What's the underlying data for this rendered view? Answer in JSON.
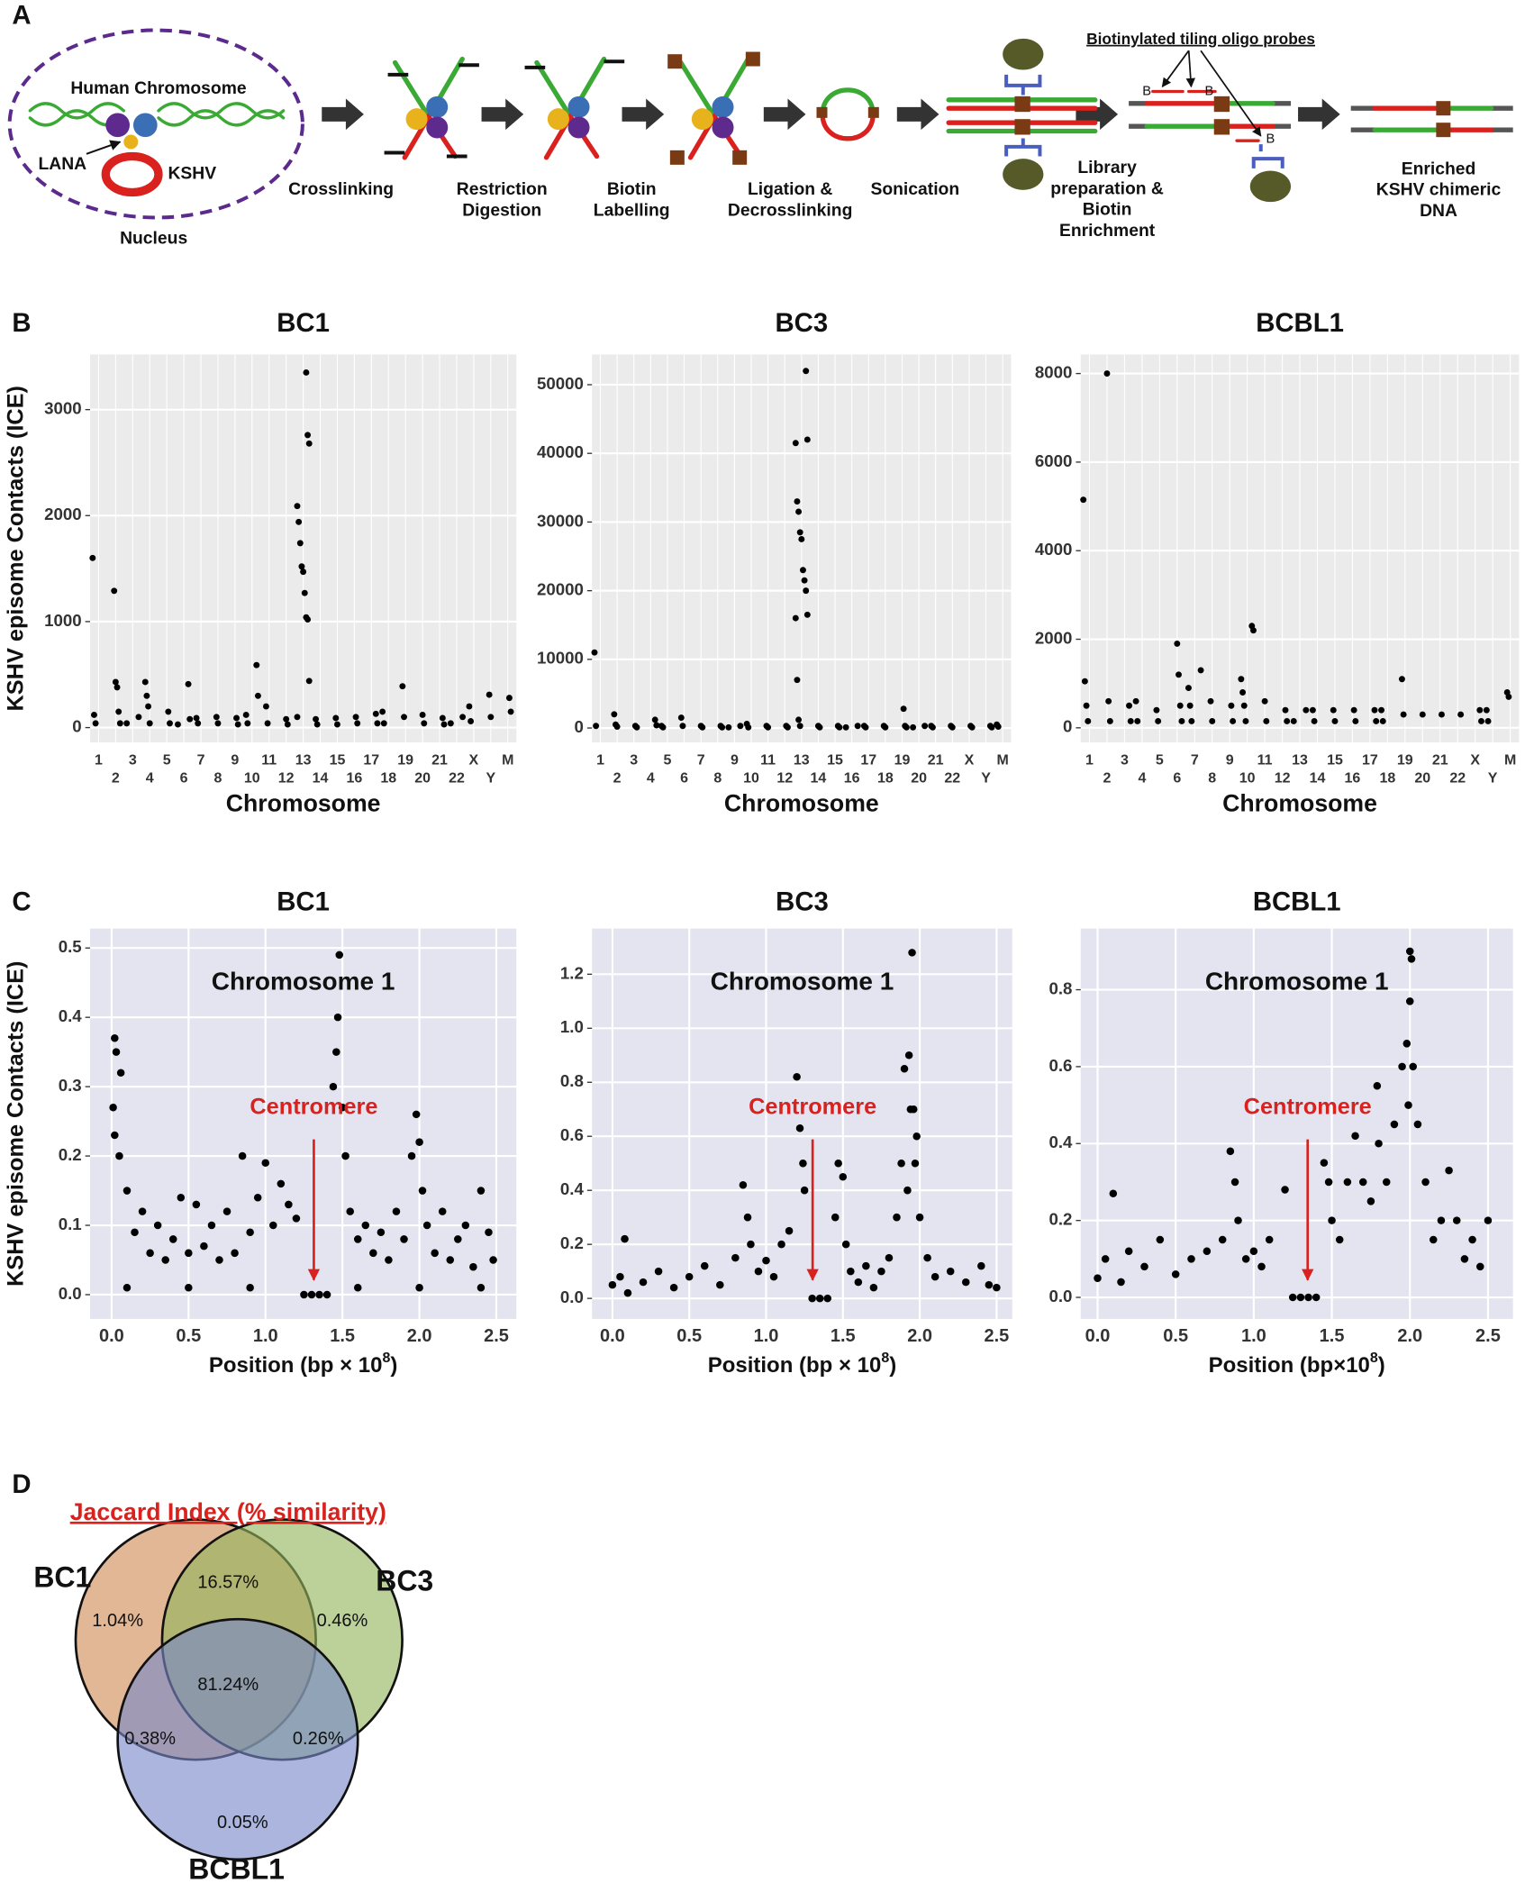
{
  "panel_labels": [
    "A",
    "B",
    "C",
    "D"
  ],
  "diagram": {
    "nucleus": {
      "chromosome": "Human Chromosome",
      "lana": "LANA",
      "kshv": "KSHV",
      "label": "Nucleus"
    },
    "steps": [
      [
        "Crosslinking"
      ],
      [
        "Restriction",
        "Digestion"
      ],
      [
        "Biotin",
        "Labelling"
      ],
      [
        "Ligation &",
        "Decrosslinking"
      ],
      [
        "Sonication"
      ],
      [
        "Library",
        "preparation &",
        "Biotin",
        "Enrichment"
      ],
      [
        "Enriched",
        "KSHV chimeric",
        "DNA"
      ]
    ],
    "probes": "Biotinylated tiling oligo probes",
    "biotin": "B"
  },
  "chart_data": [
    {
      "type": "manhattan",
      "title": "BC1",
      "xlabel": "Chromosome",
      "ylabel": "KSHV episome Contacts (ICE)",
      "categories": [
        "1",
        "2",
        "3",
        "4",
        "5",
        "6",
        "7",
        "8",
        "9",
        "10",
        "11",
        "12",
        "13",
        "14",
        "15",
        "16",
        "17",
        "18",
        "19",
        "20",
        "21",
        "22",
        "X",
        "Y",
        "M"
      ],
      "x": [
        "1",
        "1",
        "1",
        "2",
        "2",
        "2",
        "2",
        "2",
        "3",
        "3",
        "4",
        "4",
        "4",
        "4",
        "5",
        "5",
        "6",
        "6",
        "6",
        "7",
        "7",
        "8",
        "8",
        "9",
        "9",
        "10",
        "10",
        "10",
        "10",
        "11",
        "11",
        "12",
        "12",
        "13",
        "13",
        "13",
        "13",
        "13",
        "13",
        "13",
        "13",
        "13",
        "13",
        "13",
        "13",
        "13",
        "14",
        "14",
        "15",
        "15",
        "16",
        "16",
        "17",
        "17",
        "18",
        "18",
        "19",
        "19",
        "20",
        "20",
        "21",
        "21",
        "22",
        "22",
        "X",
        "X",
        "Y",
        "Y",
        "M",
        "M"
      ],
      "values": [
        1600,
        120,
        40,
        1290,
        430,
        380,
        150,
        40,
        100,
        40,
        430,
        300,
        200,
        40,
        150,
        40,
        410,
        80,
        30,
        90,
        40,
        100,
        40,
        90,
        30,
        590,
        300,
        120,
        40,
        200,
        40,
        80,
        30,
        3350,
        2760,
        2680,
        2090,
        1940,
        1740,
        1520,
        1470,
        1270,
        1040,
        1020,
        440,
        100,
        80,
        30,
        90,
        30,
        100,
        40,
        130,
        40,
        150,
        40,
        390,
        100,
        120,
        40,
        90,
        30,
        100,
        40,
        200,
        60,
        310,
        100,
        280,
        150
      ],
      "color": "#000000",
      "ylim": [
        -140,
        3520
      ],
      "yticks": [
        0,
        1000,
        2000,
        3000
      ],
      "grid": true
    },
    {
      "type": "manhattan",
      "title": "BC3",
      "xlabel": "Chromosome",
      "categories": [
        "1",
        "2",
        "3",
        "4",
        "5",
        "6",
        "7",
        "8",
        "9",
        "10",
        "11",
        "12",
        "13",
        "14",
        "15",
        "16",
        "17",
        "18",
        "19",
        "20",
        "21",
        "22",
        "X",
        "Y",
        "M"
      ],
      "x": [
        "1",
        "1",
        "2",
        "2",
        "2",
        "3",
        "3",
        "4",
        "4",
        "5",
        "5",
        "6",
        "6",
        "7",
        "7",
        "8",
        "8",
        "9",
        "9",
        "10",
        "10",
        "11",
        "11",
        "12",
        "12",
        "13",
        "13",
        "13",
        "13",
        "13",
        "13",
        "13",
        "13",
        "13",
        "13",
        "13",
        "13",
        "13",
        "13",
        "13",
        "14",
        "14",
        "15",
        "15",
        "16",
        "16",
        "17",
        "17",
        "18",
        "18",
        "19",
        "19",
        "19",
        "20",
        "20",
        "21",
        "21",
        "22",
        "22",
        "X",
        "X",
        "Y",
        "Y",
        "M",
        "M"
      ],
      "values": [
        11000,
        300,
        2000,
        500,
        200,
        300,
        100,
        1200,
        400,
        300,
        100,
        1500,
        300,
        300,
        100,
        300,
        100,
        300,
        100,
        600,
        100,
        300,
        100,
        300,
        100,
        52000,
        42000,
        41500,
        33000,
        31500,
        28500,
        27500,
        23000,
        21500,
        20000,
        16500,
        16000,
        7000,
        1200,
        300,
        300,
        100,
        300,
        100,
        300,
        100,
        300,
        100,
        300,
        100,
        2800,
        300,
        100,
        300,
        100,
        300,
        100,
        300,
        100,
        300,
        100,
        300,
        100,
        500,
        200
      ],
      "color": "#000000",
      "ylim": [
        -2100,
        54400
      ],
      "yticks": [
        0,
        10000,
        20000,
        30000,
        40000,
        50000
      ],
      "grid": true
    },
    {
      "type": "manhattan",
      "title": "BCBL1",
      "xlabel": "Chromosome",
      "categories": [
        "1",
        "2",
        "3",
        "4",
        "5",
        "6",
        "7",
        "8",
        "9",
        "10",
        "11",
        "12",
        "13",
        "14",
        "15",
        "16",
        "17",
        "18",
        "19",
        "20",
        "21",
        "22",
        "X",
        "Y",
        "M"
      ],
      "x": [
        "1",
        "1",
        "1",
        "1",
        "2",
        "2",
        "2",
        "3",
        "3",
        "4",
        "4",
        "5",
        "5",
        "6",
        "6",
        "6",
        "6",
        "7",
        "7",
        "7",
        "7",
        "8",
        "8",
        "9",
        "9",
        "10",
        "10",
        "10",
        "10",
        "10",
        "10",
        "11",
        "11",
        "12",
        "12",
        "13",
        "13",
        "14",
        "14",
        "15",
        "15",
        "16",
        "16",
        "17",
        "17",
        "18",
        "18",
        "19",
        "19",
        "20",
        "21",
        "22",
        "X",
        "X",
        "Y",
        "Y",
        "M",
        "M"
      ],
      "values": [
        5150,
        1050,
        500,
        150,
        8000,
        600,
        150,
        500,
        150,
        600,
        150,
        400,
        150,
        1900,
        1200,
        500,
        150,
        1300,
        900,
        500,
        150,
        600,
        150,
        500,
        150,
        2300,
        2200,
        1100,
        800,
        500,
        150,
        600,
        150,
        400,
        150,
        400,
        150,
        400,
        150,
        400,
        150,
        400,
        150,
        400,
        150,
        400,
        150,
        1100,
        300,
        300,
        300,
        300,
        400,
        150,
        400,
        150,
        800,
        700
      ],
      "color": "#000000",
      "ylim": [
        -330,
        8430
      ],
      "yticks": [
        0,
        2000,
        4000,
        6000,
        8000
      ],
      "grid": true
    },
    {
      "type": "scatter",
      "title": "BC1",
      "xlabel": [
        "Position (bp × 10",
        "8",
        ")"
      ],
      "ylabel": "KSHV episome Contacts (ICE)",
      "annotations": {
        "inset_title": "Chromosome 1",
        "centromere": "Centromere"
      },
      "x": [
        0.01,
        0.02,
        0.03,
        0.02,
        0.05,
        0.06,
        0.1,
        0.1,
        0.15,
        0.2,
        0.25,
        0.3,
        0.35,
        0.4,
        0.45,
        0.5,
        0.5,
        0.55,
        0.6,
        0.65,
        0.7,
        0.75,
        0.8,
        0.85,
        0.9,
        0.9,
        0.95,
        1.0,
        1.05,
        1.1,
        1.15,
        1.2,
        1.25,
        1.3,
        1.35,
        1.4,
        1.44,
        1.46,
        1.47,
        1.48,
        1.5,
        1.52,
        1.55,
        1.6,
        1.6,
        1.65,
        1.7,
        1.75,
        1.8,
        1.85,
        1.9,
        1.95,
        1.98,
        2.0,
        2.0,
        2.02,
        2.05,
        2.1,
        2.15,
        2.2,
        2.25,
        2.3,
        2.35,
        2.4,
        2.4,
        2.45,
        2.48
      ],
      "values": [
        0.27,
        0.37,
        0.35,
        0.23,
        0.2,
        0.32,
        0.15,
        0.01,
        0.09,
        0.12,
        0.06,
        0.1,
        0.05,
        0.08,
        0.14,
        0.06,
        0.01,
        0.13,
        0.07,
        0.1,
        0.05,
        0.12,
        0.06,
        0.2,
        0.09,
        0.01,
        0.14,
        0.19,
        0.1,
        0.16,
        0.13,
        0.11,
        0,
        0,
        0,
        0,
        0.3,
        0.35,
        0.4,
        0.49,
        0.27,
        0.2,
        0.12,
        0.08,
        0.01,
        0.1,
        0.06,
        0.09,
        0.05,
        0.12,
        0.08,
        0.2,
        0.26,
        0.22,
        0.01,
        0.15,
        0.1,
        0.06,
        0.12,
        0.05,
        0.08,
        0.1,
        0.04,
        0.15,
        0.01,
        0.09,
        0.05
      ],
      "color": "#000000",
      "xlim": [
        -0.14,
        2.63
      ],
      "ylim": [
        -0.035,
        0.528
      ],
      "xticks": [
        {
          "value": 0,
          "label": "0.0"
        },
        0.5,
        {
          "value": 1,
          "label": "1.0"
        },
        1.5,
        {
          "value": 2,
          "label": "2.0"
        },
        2.5
      ],
      "yticks": [
        {
          "value": 0,
          "label": "0.0"
        },
        0.1,
        0.2,
        0.3,
        0.4,
        0.5
      ],
      "grid": true
    },
    {
      "type": "scatter",
      "title": "BC3",
      "xlabel": [
        "Position (bp × 10",
        "8",
        ")"
      ],
      "annotations": {
        "inset_title": "Chromosome 1",
        "centromere": "Centromere"
      },
      "x": [
        0.0,
        0.05,
        0.08,
        0.1,
        0.2,
        0.3,
        0.4,
        0.5,
        0.6,
        0.7,
        0.8,
        0.85,
        0.88,
        0.9,
        0.95,
        1.0,
        1.05,
        1.1,
        1.15,
        1.2,
        1.22,
        1.24,
        1.25,
        1.3,
        1.35,
        1.4,
        1.45,
        1.47,
        1.5,
        1.52,
        1.55,
        1.6,
        1.65,
        1.7,
        1.75,
        1.8,
        1.85,
        1.88,
        1.9,
        1.92,
        1.93,
        1.94,
        1.95,
        1.96,
        1.97,
        1.98,
        2.0,
        2.05,
        2.1,
        2.2,
        2.3,
        2.4,
        2.45,
        2.5
      ],
      "values": [
        0.05,
        0.08,
        0.22,
        0.02,
        0.06,
        0.1,
        0.04,
        0.08,
        0.12,
        0.05,
        0.15,
        0.42,
        0.3,
        0.2,
        0.1,
        0.14,
        0.08,
        0.2,
        0.25,
        0.82,
        0.63,
        0.5,
        0.4,
        0,
        0,
        0,
        0.3,
        0.5,
        0.45,
        0.2,
        0.1,
        0.06,
        0.12,
        0.04,
        0.1,
        0.15,
        0.3,
        0.5,
        0.85,
        0.4,
        0.9,
        0.7,
        1.28,
        0.7,
        0.5,
        0.6,
        0.3,
        0.15,
        0.08,
        0.1,
        0.06,
        0.12,
        0.05,
        0.04
      ],
      "color": "#000000",
      "xlim": [
        -0.133,
        2.602
      ],
      "ylim": [
        -0.076,
        1.369
      ],
      "xticks": [
        {
          "value": 0,
          "label": "0.0"
        },
        0.5,
        {
          "value": 1,
          "label": "1.0"
        },
        1.5,
        {
          "value": 2,
          "label": "2.0"
        },
        2.5
      ],
      "yticks": [
        {
          "value": 0,
          "label": "0.0"
        },
        0.2,
        0.4,
        0.6,
        0.8,
        {
          "value": 1,
          "label": "1.0"
        },
        1.2
      ],
      "grid": true
    },
    {
      "type": "scatter",
      "title": "BCBL1",
      "xlabel": [
        "Position (bp×10",
        "8",
        ")"
      ],
      "annotations": {
        "inset_title": "Chromosome 1",
        "centromere": "Centromere"
      },
      "x": [
        0.0,
        0.05,
        0.1,
        0.15,
        0.2,
        0.3,
        0.4,
        0.5,
        0.6,
        0.7,
        0.8,
        0.85,
        0.88,
        0.9,
        0.95,
        1.0,
        1.05,
        1.1,
        1.2,
        1.25,
        1.3,
        1.35,
        1.4,
        1.45,
        1.48,
        1.5,
        1.55,
        1.6,
        1.65,
        1.7,
        1.75,
        1.79,
        1.8,
        1.85,
        1.9,
        1.95,
        1.98,
        1.99,
        2.0,
        2.0,
        2.01,
        2.02,
        2.05,
        2.1,
        2.15,
        2.2,
        2.25,
        2.3,
        2.35,
        2.4,
        2.45,
        2.5
      ],
      "values": [
        0.05,
        0.1,
        0.27,
        0.04,
        0.12,
        0.08,
        0.15,
        0.06,
        0.1,
        0.12,
        0.15,
        0.38,
        0.3,
        0.2,
        0.1,
        0.12,
        0.08,
        0.15,
        0.28,
        0,
        0,
        0,
        0,
        0.35,
        0.3,
        0.2,
        0.15,
        0.3,
        0.42,
        0.3,
        0.25,
        0.55,
        0.4,
        0.3,
        0.45,
        0.6,
        0.66,
        0.5,
        0.9,
        0.77,
        0.88,
        0.6,
        0.45,
        0.3,
        0.15,
        0.2,
        0.33,
        0.2,
        0.1,
        0.15,
        0.08,
        0.2
      ],
      "color": "#000000",
      "xlim": [
        -0.108,
        2.66
      ],
      "ylim": [
        -0.056,
        0.959
      ],
      "xticks": [
        {
          "value": 0,
          "label": "0.0"
        },
        0.5,
        {
          "value": 1,
          "label": "1.0"
        },
        1.5,
        {
          "value": 2,
          "label": "2.0"
        },
        2.5
      ],
      "yticks": [
        {
          "value": 0,
          "label": "0.0"
        },
        0.2,
        0.4,
        0.6,
        0.8
      ],
      "grid": true
    },
    {
      "type": "venn",
      "title": "Jaccard Index (% similarity)",
      "series": [
        {
          "name": "BC1",
          "color": "#d08a55"
        },
        {
          "name": "BC3",
          "color": "#93b35c"
        },
        {
          "name": "BCBL1",
          "color": "#7788c8"
        }
      ],
      "values": [
        1.04,
        16.57,
        0.46,
        81.24,
        0.38,
        0.26,
        0.05
      ],
      "value_labels": [
        "1.04%",
        "16.57%",
        "0.46%",
        "81.24%",
        "0.38%",
        "0.26%",
        "0.05%"
      ]
    }
  ]
}
